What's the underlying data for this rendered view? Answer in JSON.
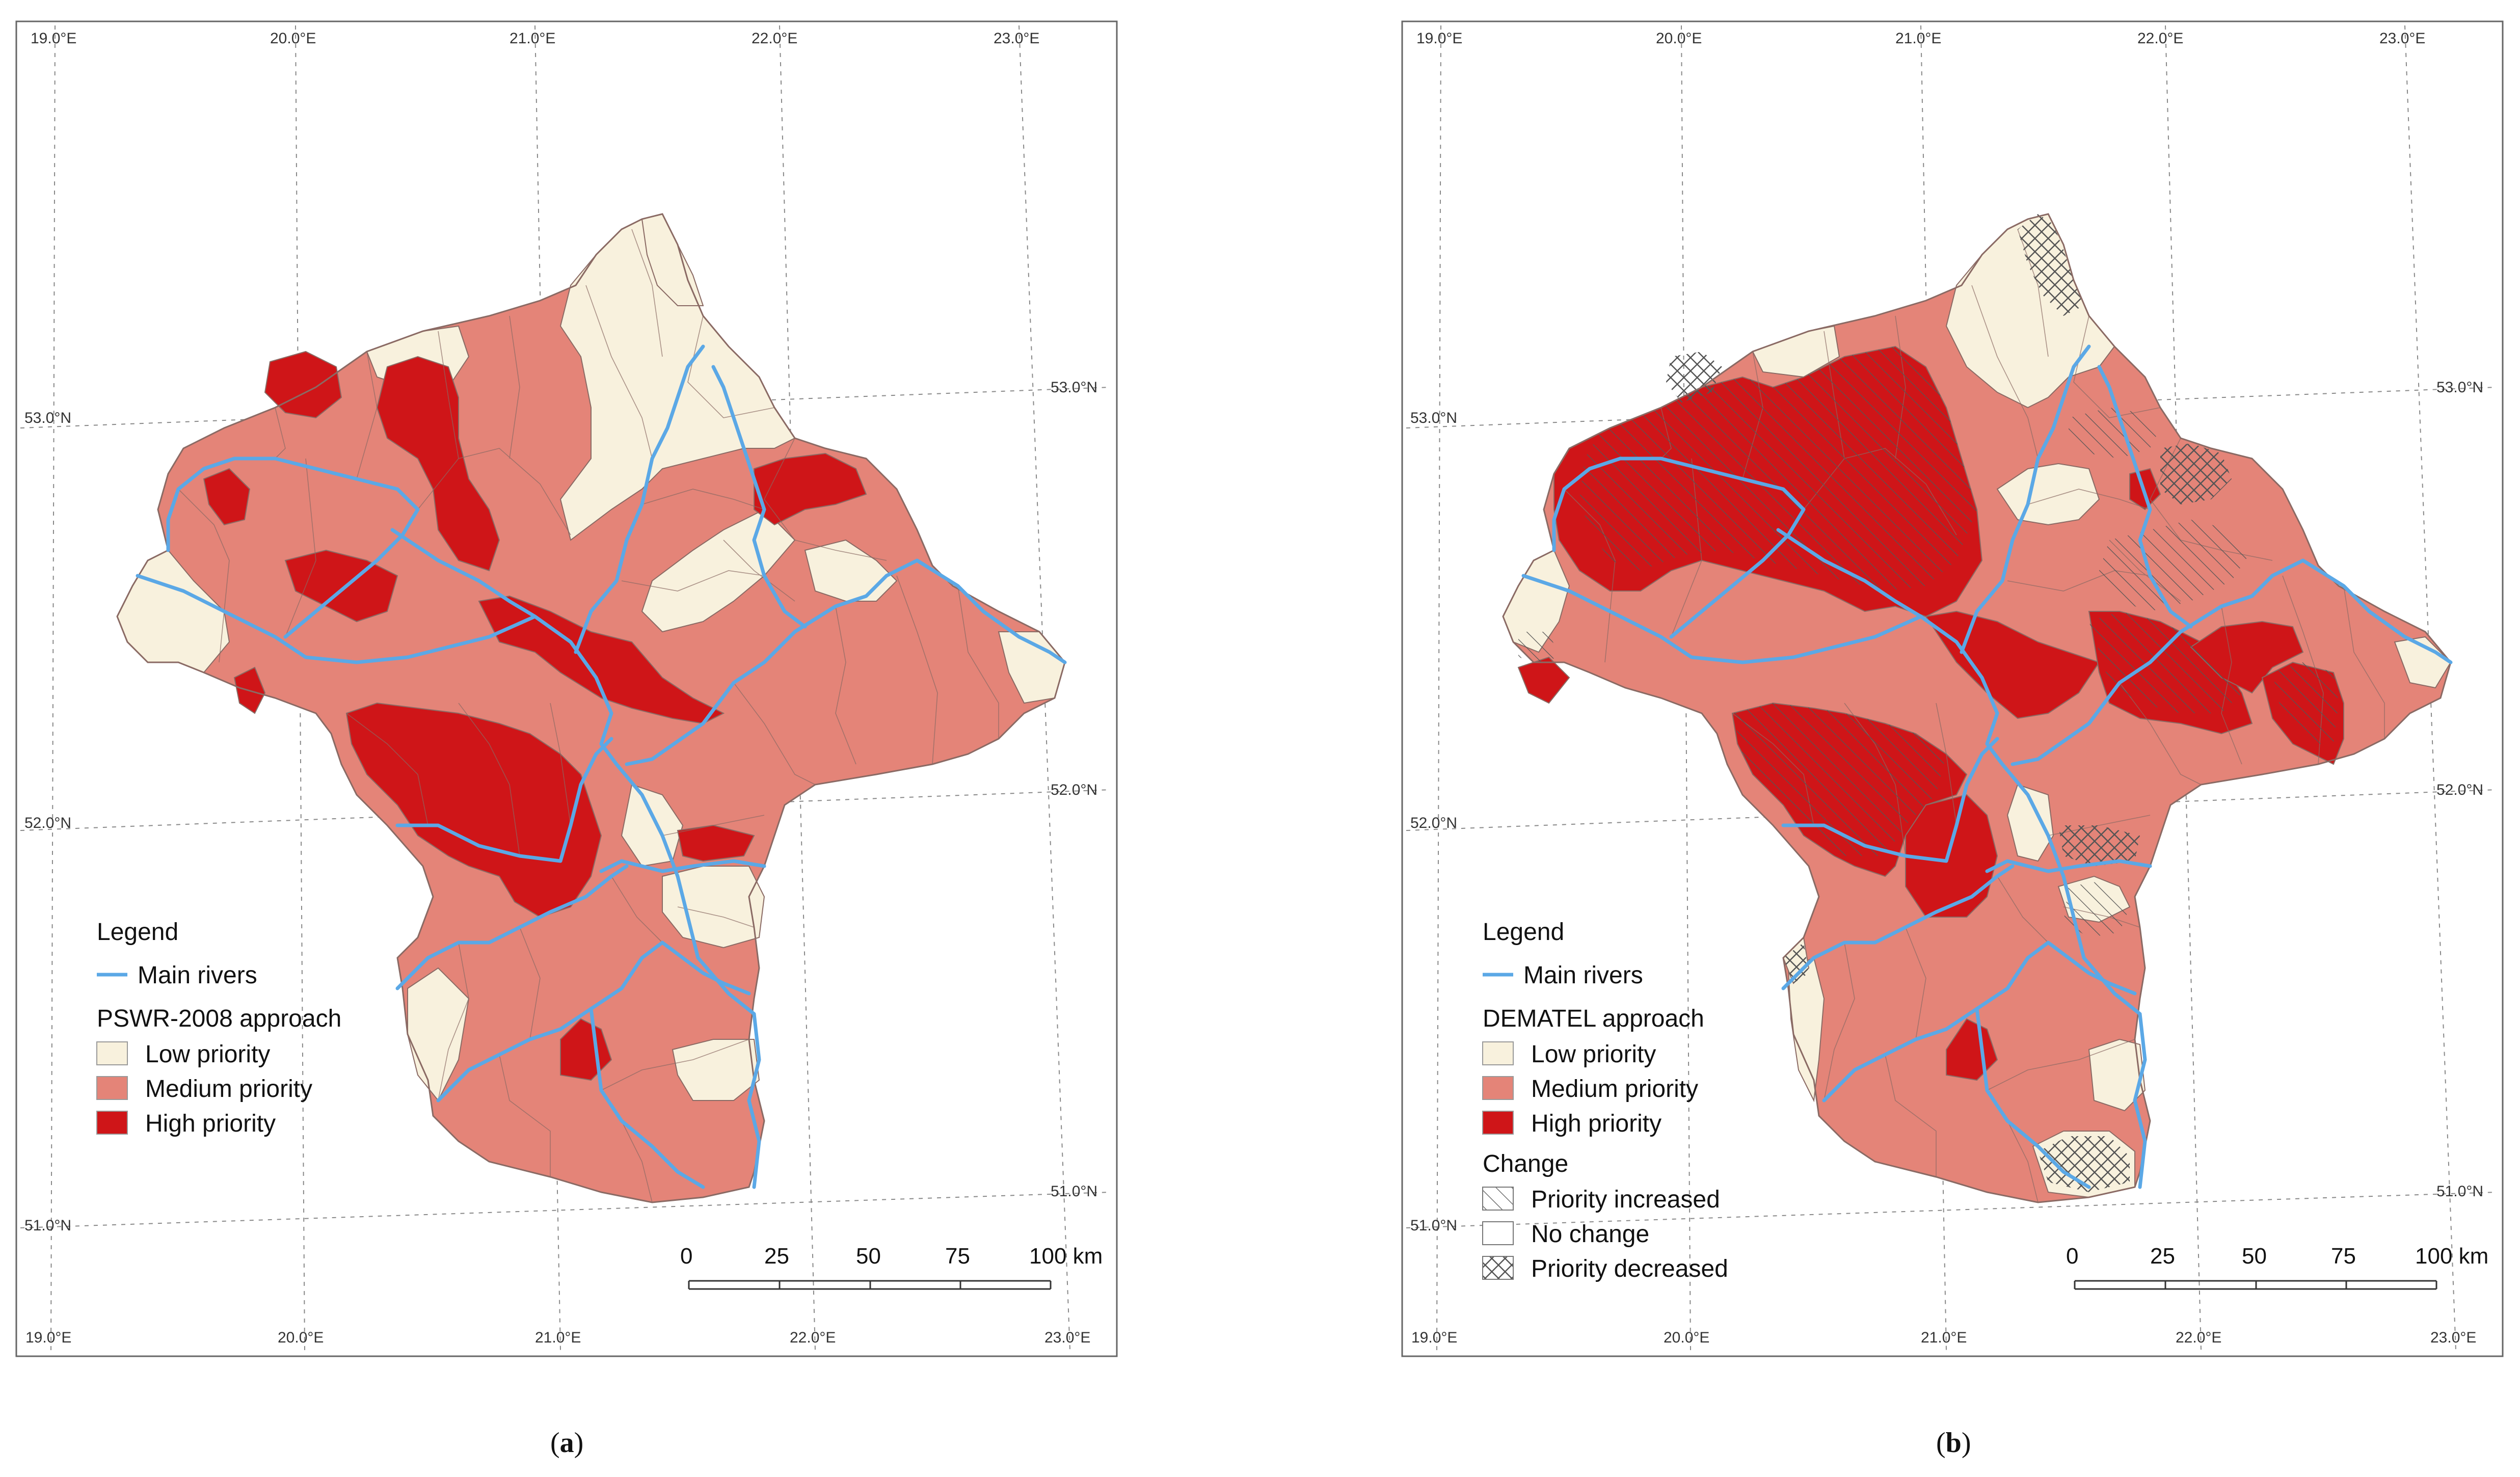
{
  "panels": [
    {
      "id": "a",
      "label_open": "(",
      "label_letter": "a",
      "label_close": ")",
      "top_ticks_lon": [
        "19.0°E",
        "20.0°E",
        "21.0°E",
        "22.0°E",
        "23.0°E"
      ],
      "bottom_ticks_lon": [
        "19.0°E",
        "20.0°E",
        "21.0°E",
        "22.0°E",
        "23.0°E"
      ],
      "left_ticks_lat": [
        "53.0°N",
        "52.0°N",
        "51.0°N"
      ],
      "right_ticks_lat": [
        "53.0°N",
        "52.0°N",
        "51.0°N"
      ],
      "legend": {
        "title": "Legend",
        "rivers_label": "Main rivers",
        "approach_title": "PSWR-2008 approach",
        "classes": [
          "Low priority",
          "Medium priority",
          "High priority"
        ]
      },
      "scale": {
        "ticks": [
          "0",
          "25",
          "50",
          "75",
          "100 km"
        ]
      }
    },
    {
      "id": "b",
      "label_open": "(",
      "label_letter": "b",
      "label_close": ")",
      "top_ticks_lon": [
        "19.0°E",
        "20.0°E",
        "21.0°E",
        "22.0°E",
        "23.0°E"
      ],
      "bottom_ticks_lon": [
        "19.0°E",
        "20.0°E",
        "21.0°E",
        "22.0°E",
        "23.0°E"
      ],
      "left_ticks_lat": [
        "53.0°N",
        "52.0°N",
        "51.0°N"
      ],
      "right_ticks_lat": [
        "53.0°N",
        "52.0°N",
        "51.0°N"
      ],
      "legend": {
        "title": "Legend",
        "rivers_label": "Main rivers",
        "approach_title": "DEMATEL approach",
        "classes": [
          "Low priority",
          "Medium priority",
          "High priority"
        ],
        "change_title": "Change",
        "change_classes": [
          "Priority increased",
          "No change",
          "Priority decreased"
        ]
      },
      "scale": {
        "ticks": [
          "0",
          "25",
          "50",
          "75",
          "100 km"
        ]
      }
    }
  ],
  "colors": {
    "low": "#f8f1dd",
    "medium": "#e48478",
    "high": "#cf1518",
    "river": "#5ba8e6",
    "boundary": "#8a6a64",
    "frame": "#666666"
  }
}
